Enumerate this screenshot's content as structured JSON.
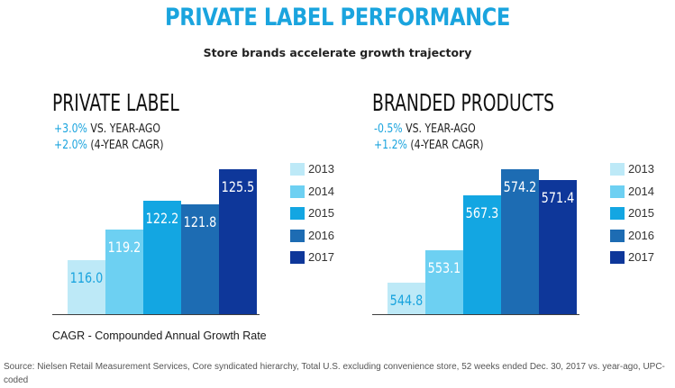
{
  "title": "PRIVATE LABEL PERFORMANCE",
  "subtitle": "Store brands accelerate growth trajectory",
  "colors": {
    "accent": "#1aa4de",
    "2013": "#bde9f7",
    "2014": "#6dd0f2",
    "2015": "#13a6e2",
    "2016": "#1d6cb3",
    "2017": "#0e379a"
  },
  "chart_data": [
    {
      "type": "bar",
      "title": "PRIVATE LABEL",
      "stats": [
        {
          "value": "+3.0%",
          "label": " VS. YEAR-AGO"
        },
        {
          "value": "+2.0%",
          "label": " (4-YEAR CAGR)"
        }
      ],
      "categories": [
        "2013",
        "2014",
        "2015",
        "2016",
        "2017"
      ],
      "values": [
        116.0,
        119.2,
        122.2,
        121.8,
        125.5
      ],
      "value_labels": [
        "116.0",
        "119.2",
        "122.2",
        "121.8",
        "125.5"
      ],
      "ylim": [
        110.4,
        126.8
      ],
      "legend": "right"
    },
    {
      "type": "bar",
      "title": "BRANDED PRODUCTS",
      "stats": [
        {
          "value": "-0.5%",
          "label": " VS. YEAR-AGO"
        },
        {
          "value": "+1.2%",
          "label": " (4-YEAR CAGR)"
        }
      ],
      "categories": [
        "2013",
        "2014",
        "2015",
        "2016",
        "2017"
      ],
      "values": [
        544.8,
        553.1,
        567.3,
        574.2,
        571.4
      ],
      "value_labels": [
        "544.8",
        "553.1",
        "567.3",
        "574.2",
        "571.4"
      ],
      "ylim": [
        536.5,
        577.4
      ],
      "legend": "right"
    }
  ],
  "footnote": "CAGR - Compounded Annual Growth Rate",
  "source": "Source: Nielsen Retail Measurement Services, Core syndicated hierarchy, Total U.S. excluding convenience store, 52 weeks ended Dec. 30, 2017 vs. year-ago, UPC-coded"
}
